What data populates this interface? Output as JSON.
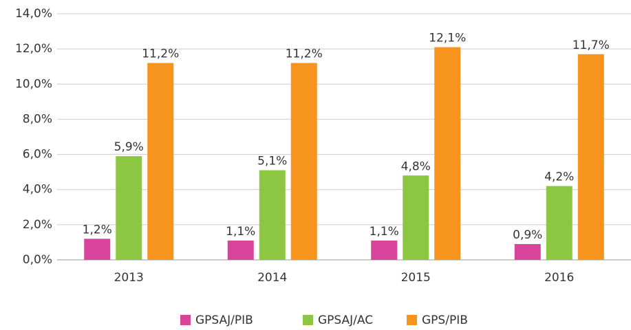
{
  "chart_data": {
    "type": "bar",
    "categories": [
      "2013",
      "2014",
      "2015",
      "2016"
    ],
    "series": [
      {
        "name": "GPSAJ/PIB",
        "color": "#d9449b",
        "values": [
          1.2,
          1.1,
          1.1,
          0.9
        ],
        "value_labels": [
          "1,2%",
          "1,1%",
          "1,1%",
          "0,9%"
        ]
      },
      {
        "name": "GPSAJ/AC",
        "color": "#8dc641",
        "values": [
          5.9,
          5.1,
          4.8,
          4.2
        ],
        "value_labels": [
          "5,9%",
          "5,1%",
          "4,8%",
          "4,2%"
        ]
      },
      {
        "name": "GPS/PIB",
        "color": "#f7941e",
        "values": [
          11.2,
          11.2,
          12.1,
          11.7
        ],
        "value_labels": [
          "11,2%",
          "11,2%",
          "12,1%",
          "11,7%"
        ]
      }
    ],
    "ylim": [
      0,
      14
    ],
    "yticks": [
      {
        "value": 0,
        "label": "0,0%"
      },
      {
        "value": 2,
        "label": "2,0%"
      },
      {
        "value": 4,
        "label": "4,0%"
      },
      {
        "value": 6,
        "label": "6,0%"
      },
      {
        "value": 8,
        "label": "8,0%"
      },
      {
        "value": 10,
        "label": "10,0%"
      },
      {
        "value": 12,
        "label": "12,0%"
      },
      {
        "value": 14,
        "label": "14,0%"
      }
    ],
    "grid": true,
    "legend": "bottom"
  }
}
